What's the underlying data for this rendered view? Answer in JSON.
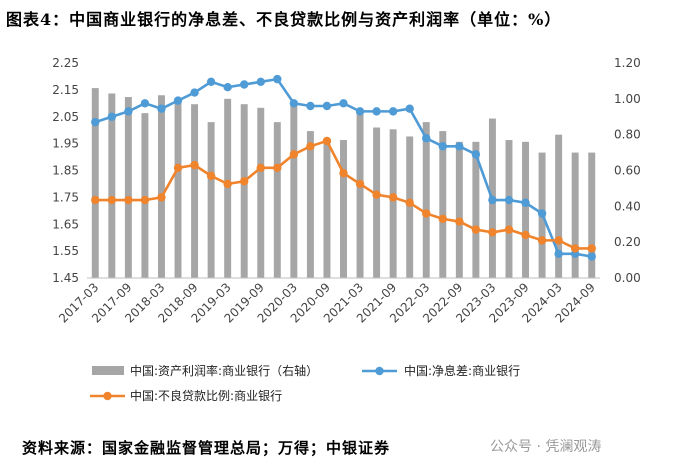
{
  "title": "图表4：中国商业银行的净息差、不良贷款比例与资产利润率（单位：%）",
  "source": "资料来源：国家金融监督管理总局；万得；中银证券",
  "watermark": "公众号 · 凭澜观涛",
  "chart_data": {
    "type": "bar+line",
    "x_tick_labels": [
      "2017-03",
      "2017-09",
      "2018-03",
      "2018-09",
      "2019-03",
      "2019-09",
      "2020-03",
      "2020-09",
      "2021-03",
      "2021-09",
      "2022-03",
      "2022-09",
      "2023-03",
      "2023-09",
      "2024-03",
      "2024-09"
    ],
    "x": [
      "2017-03",
      "2017-06",
      "2017-09",
      "2017-12",
      "2018-03",
      "2018-06",
      "2018-09",
      "2018-12",
      "2019-03",
      "2019-06",
      "2019-09",
      "2019-12",
      "2020-03",
      "2020-06",
      "2020-09",
      "2020-12",
      "2021-03",
      "2021-06",
      "2021-09",
      "2021-12",
      "2022-03",
      "2022-06",
      "2022-09",
      "2022-12",
      "2023-03",
      "2023-06",
      "2023-09",
      "2023-12",
      "2024-03",
      "2024-06",
      "2024-09"
    ],
    "left_axis": {
      "ylim": [
        1.45,
        2.25
      ],
      "ticks": [
        "1.45",
        "1.55",
        "1.65",
        "1.75",
        "1.85",
        "1.95",
        "2.05",
        "2.15",
        "2.25"
      ]
    },
    "right_axis": {
      "ylim": [
        0,
        1.2
      ],
      "ticks": [
        "0.00",
        "0.20",
        "0.40",
        "0.60",
        "0.80",
        "1.00",
        "1.20"
      ]
    },
    "series": [
      {
        "name": "中国:资产利润率:商业银行（右轴）",
        "type": "bar",
        "axis": "right",
        "color": "#a6a6a6",
        "values": [
          1.06,
          1.03,
          1.01,
          0.92,
          1.02,
          1.0,
          0.97,
          0.87,
          1.0,
          0.97,
          0.95,
          0.87,
          0.99,
          0.82,
          0.77,
          0.77,
          0.93,
          0.84,
          0.83,
          0.79,
          0.87,
          0.82,
          0.76,
          0.76,
          0.89,
          0.77,
          0.76,
          0.7,
          0.8,
          0.7,
          0.7
        ]
      },
      {
        "name": "中国:净息差:商业银行",
        "type": "line",
        "axis": "left",
        "color": "#4f9bd6",
        "values": [
          2.03,
          2.05,
          2.07,
          2.1,
          2.08,
          2.11,
          2.14,
          2.18,
          2.16,
          2.17,
          2.18,
          2.19,
          2.1,
          2.09,
          2.09,
          2.1,
          2.07,
          2.07,
          2.07,
          2.08,
          1.97,
          1.94,
          1.94,
          1.91,
          1.74,
          1.74,
          1.73,
          1.69,
          1.54,
          1.54,
          1.53
        ]
      },
      {
        "name": "中国:不良贷款比例:商业银行",
        "type": "line",
        "axis": "left",
        "color": "#f0842c",
        "values": [
          1.74,
          1.74,
          1.74,
          1.74,
          1.75,
          1.86,
          1.87,
          1.83,
          1.8,
          1.81,
          1.86,
          1.86,
          1.91,
          1.94,
          1.96,
          1.84,
          1.8,
          1.76,
          1.75,
          1.73,
          1.69,
          1.67,
          1.66,
          1.63,
          1.62,
          1.63,
          1.61,
          1.59,
          1.59,
          1.56,
          1.56
        ]
      }
    ],
    "legend_position": "bottom",
    "grid": false
  }
}
